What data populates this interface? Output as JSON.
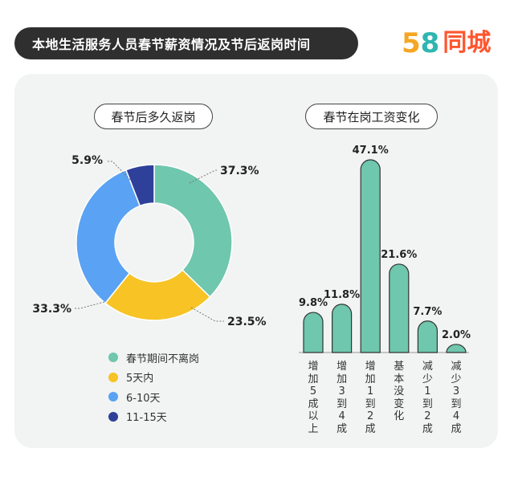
{
  "header": {
    "title": "本地生活服务人员春节薪资情况及节后返岗时间"
  },
  "logo": {
    "number_part1": "5",
    "number_part2": "8",
    "text": "同城"
  },
  "colors": {
    "teal": "#6fc7ad",
    "yellow": "#f7c325",
    "blue": "#5aa2f3",
    "navy": "#2e4099",
    "header_bg": "#2f2f2f",
    "card_bg": "#f2f3f3"
  },
  "chart_data": [
    {
      "type": "pie",
      "title": "春节后多久返岗",
      "categories": [
        "春节期间不离岗",
        "5天内",
        "6-10天",
        "11-15天"
      ],
      "values": [
        37.3,
        23.5,
        33.3,
        5.9
      ],
      "labels": [
        "37.3%",
        "23.5%",
        "33.3%",
        "5.9%"
      ],
      "colors": [
        "#6fc7ad",
        "#f7c325",
        "#5aa2f3",
        "#2e4099"
      ],
      "legend": "bottom"
    },
    {
      "type": "bar",
      "title": "春节在岗工资变化",
      "categories": [
        "增加5成以上",
        "增加3到4成",
        "增加1到2成",
        "基本没变化",
        "减少1到2成",
        "减少3到4成"
      ],
      "values": [
        9.8,
        11.8,
        47.1,
        21.6,
        7.7,
        2.0
      ],
      "labels": [
        "9.8%",
        "11.8%",
        "47.1%",
        "21.6%",
        "7.7%",
        "2.0%"
      ],
      "color": "#6fc7ad"
    }
  ]
}
